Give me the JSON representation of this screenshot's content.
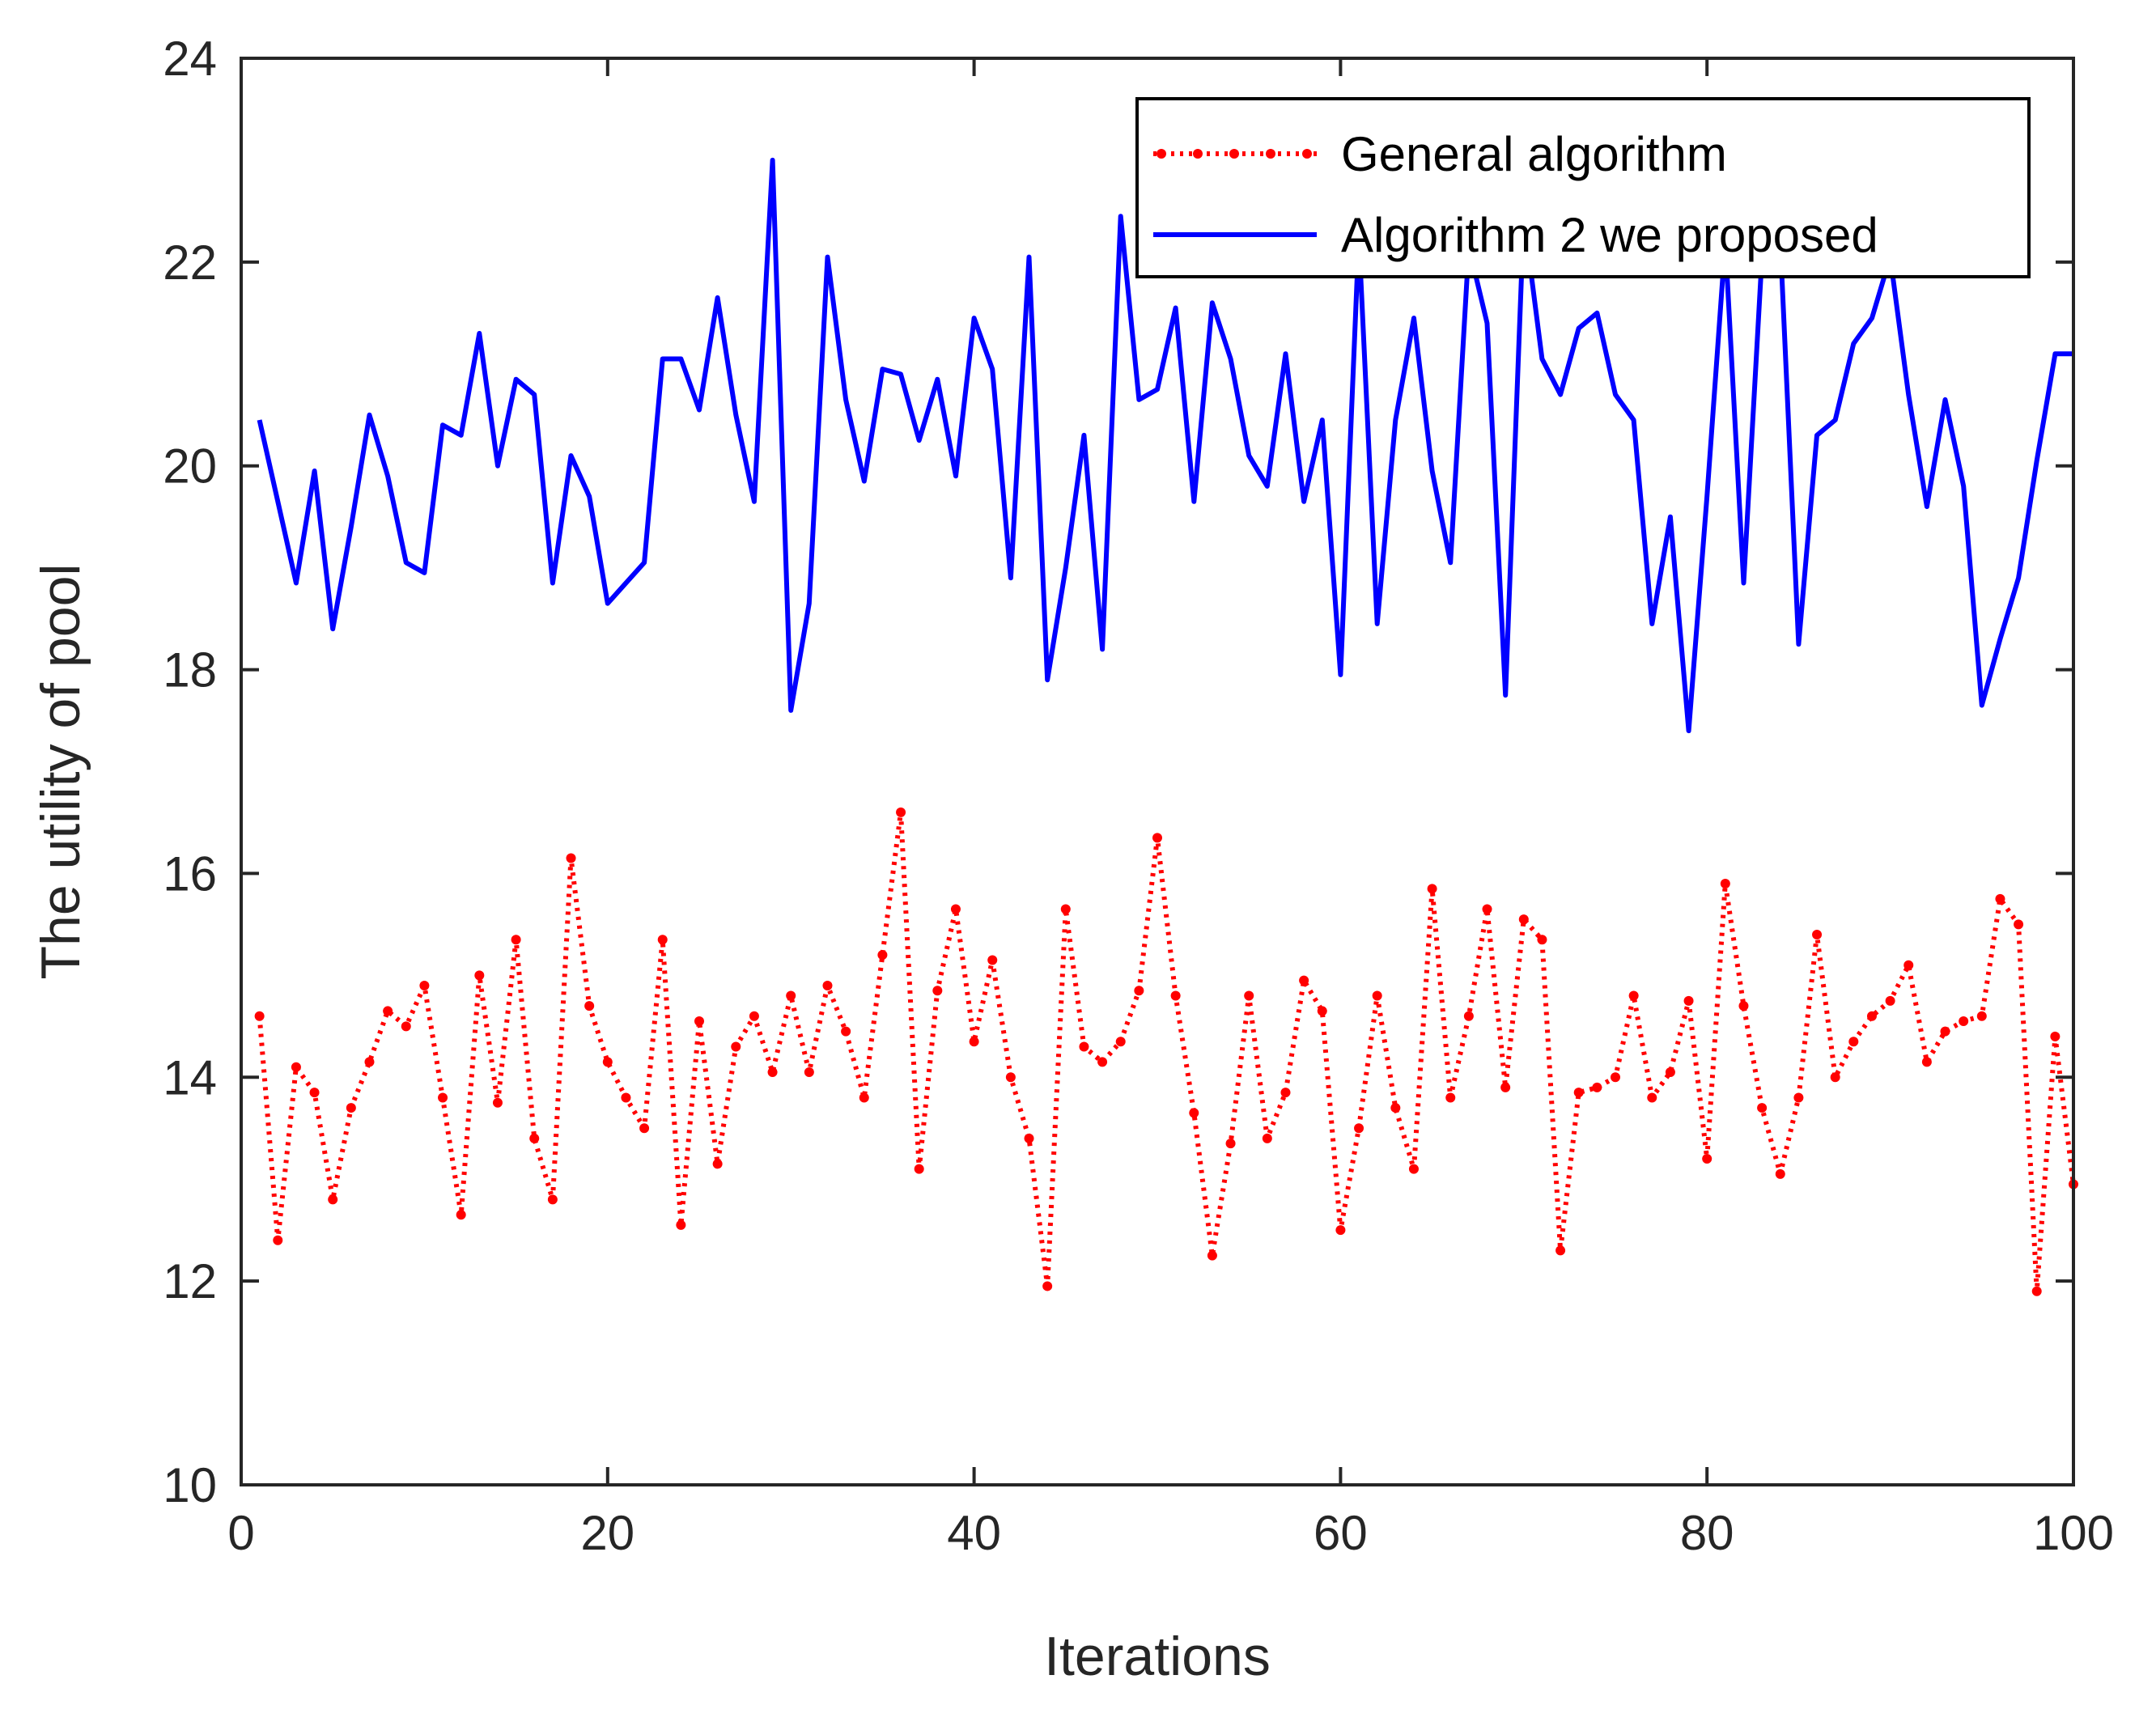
{
  "chart_data": {
    "type": "line",
    "title": "",
    "xlabel": "Iterations",
    "ylabel": "The utility of pool",
    "xlim": [
      0,
      100
    ],
    "ylim": [
      10,
      24
    ],
    "xticks": [
      0,
      20,
      40,
      60,
      80,
      100
    ],
    "yticks": [
      10,
      12,
      14,
      16,
      18,
      20,
      22,
      24
    ],
    "grid": false,
    "legend_position": "top-right",
    "series": [
      {
        "name": "General algorithm",
        "color": "#ff0000",
        "style": "dotted-with-markers",
        "x": [
          1,
          2,
          3,
          4,
          5,
          6,
          7,
          8,
          9,
          10,
          11,
          12,
          13,
          14,
          15,
          16,
          17,
          18,
          19,
          20,
          21,
          22,
          23,
          24,
          25,
          26,
          27,
          28,
          29,
          30,
          31,
          32,
          33,
          34,
          35,
          36,
          37,
          38,
          39,
          40,
          41,
          42,
          43,
          44,
          45,
          46,
          47,
          48,
          49,
          50,
          51,
          52,
          53,
          54,
          55,
          56,
          57,
          58,
          59,
          60,
          61,
          62,
          63,
          64,
          65,
          66,
          67,
          68,
          69,
          70,
          71,
          72,
          73,
          74,
          75,
          76,
          77,
          78,
          79,
          80,
          81,
          82,
          83,
          84,
          85,
          86,
          87,
          88,
          89,
          90,
          91,
          92,
          93,
          94,
          95,
          96,
          97,
          98,
          99,
          100
        ],
        "values": [
          14.6,
          12.4,
          14.1,
          13.85,
          12.8,
          13.7,
          14.15,
          14.65,
          14.5,
          14.9,
          13.8,
          12.65,
          15,
          13.75,
          15.35,
          13.4,
          12.8,
          16.15,
          14.7,
          14.15,
          13.8,
          13.5,
          15.35,
          12.55,
          14.55,
          13.15,
          14.3,
          14.6,
          14.05,
          14.8,
          14.05,
          14.9,
          14.45,
          13.8,
          15.2,
          16.6,
          13.1,
          14.85,
          15.65,
          14.35,
          15.15,
          14,
          13.4,
          11.95,
          15.65,
          14.3,
          14.15,
          14.35,
          14.85,
          16.35,
          14.8,
          13.65,
          12.25,
          13.35,
          14.8,
          13.4,
          13.85,
          14.95,
          14.65,
          12.5,
          13.5,
          14.8,
          13.7,
          13.1,
          15.85,
          13.8,
          14.6,
          15.65,
          13.9,
          15.55,
          15.35,
          12.3,
          13.85,
          13.9,
          14,
          14.8,
          13.8,
          14.05,
          14.75,
          13.2,
          15.9,
          14.7,
          13.7,
          13.05,
          13.8,
          15.4,
          14,
          14.35,
          14.6,
          14.75,
          15.1,
          14.15,
          14.45,
          14.55,
          14.6,
          15.75,
          15.5,
          11.9,
          14.4,
          12.95
        ]
      },
      {
        "name": "Algorithm 2 we proposed",
        "color": "#0000ff",
        "style": "solid",
        "x": [
          1,
          2,
          3,
          4,
          5,
          6,
          7,
          8,
          9,
          10,
          11,
          12,
          13,
          14,
          15,
          16,
          17,
          18,
          19,
          20,
          21,
          22,
          23,
          24,
          25,
          26,
          27,
          28,
          29,
          30,
          31,
          32,
          33,
          34,
          35,
          36,
          37,
          38,
          39,
          40,
          41,
          42,
          43,
          44,
          45,
          46,
          47,
          48,
          49,
          50,
          51,
          52,
          53,
          54,
          55,
          56,
          57,
          58,
          59,
          60,
          61,
          62,
          63,
          64,
          65,
          66,
          67,
          68,
          69,
          70,
          71,
          72,
          73,
          74,
          75,
          76,
          77,
          78,
          79,
          80,
          81,
          82,
          83,
          84,
          85,
          86,
          87,
          88,
          89,
          90,
          91,
          92,
          93,
          94,
          95,
          96,
          97,
          98,
          99,
          100
        ],
        "values": [
          20.45,
          19.65,
          18.85,
          19.95,
          18.4,
          19.4,
          20.5,
          19.9,
          19.05,
          18.95,
          20.4,
          20.3,
          21.3,
          20,
          20.85,
          20.7,
          18.85,
          20.1,
          19.7,
          18.65,
          18.85,
          19.05,
          21.05,
          21.05,
          20.55,
          21.65,
          20.5,
          19.65,
          23,
          17.6,
          18.65,
          22.05,
          20.65,
          19.85,
          20.95,
          20.9,
          20.25,
          20.85,
          19.9,
          21.45,
          20.95,
          18.9,
          22.05,
          17.9,
          19,
          20.3,
          18.2,
          22.45,
          20.65,
          20.75,
          21.55,
          19.65,
          21.6,
          21.05,
          20.1,
          19.8,
          21.1,
          19.65,
          20.45,
          17.95,
          22.25,
          18.45,
          20.45,
          21.45,
          19.95,
          19.05,
          22.15,
          21.4,
          17.75,
          22.45,
          21.05,
          20.7,
          21.35,
          21.5,
          20.7,
          20.45,
          18.45,
          19.5,
          17.4,
          19.7,
          22.2,
          18.85,
          22.05,
          22.2,
          18.25,
          20.3,
          20.45,
          21.2,
          21.45,
          22.05,
          20.7,
          19.6,
          20.65,
          19.8,
          17.65,
          18.3,
          18.9,
          20.05,
          21.1,
          21.1
        ]
      }
    ]
  }
}
